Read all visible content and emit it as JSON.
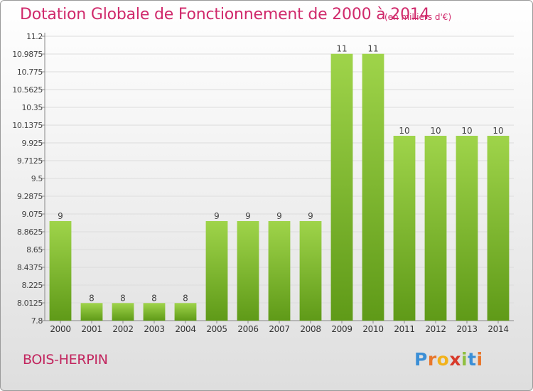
{
  "header": {
    "title": "Dotation Globale de Fonctionnement de 2000 à 2014",
    "unit": "(en milliers d'€)"
  },
  "footer": {
    "commune": "BOIS-HERPIN",
    "brand_letters": [
      "P",
      "r",
      "o",
      "x",
      "i",
      "t",
      "i"
    ],
    "brand_colors": [
      "#3b8fd6",
      "#e8762b",
      "#f2b21b",
      "#d83a2a",
      "#8fbf3f",
      "#3b8fd6",
      "#e8762b"
    ]
  },
  "colors": {
    "title": "#d0296b",
    "bar_light": "#9fd44a",
    "bar_dark": "#5f9a18",
    "axis": "#888888",
    "grid": "#dcdcdc"
  },
  "chart_data": {
    "type": "bar",
    "categories": [
      "2000",
      "2001",
      "2002",
      "2003",
      "2004",
      "2005",
      "2006",
      "2007",
      "2008",
      "2009",
      "2010",
      "2011",
      "2012",
      "2013",
      "2014"
    ],
    "values": [
      8.99,
      8.01,
      8.01,
      8.01,
      8.01,
      8.99,
      8.99,
      8.99,
      8.99,
      10.99,
      10.99,
      10.01,
      10.01,
      10.01,
      10.01
    ],
    "data_labels": [
      "9",
      "8",
      "8",
      "8",
      "8",
      "9",
      "9",
      "9",
      "9",
      "11",
      "11",
      "10",
      "10",
      "10",
      "10"
    ],
    "yticks": [
      "7.8",
      "8.0125",
      "8.225",
      "8.4375",
      "8.65",
      "8.8625",
      "9.075",
      "9.2875",
      "9.5",
      "9.7125",
      "9.925",
      "10.1375",
      "10.35",
      "10.5625",
      "10.775",
      "10.9875",
      "11.2"
    ],
    "ylim": [
      7.8,
      11.2
    ],
    "grid": true,
    "legend": "none",
    "title": "Dotation Globale de Fonctionnement de 2000 à 2014",
    "xlabel": "",
    "ylabel": ""
  }
}
